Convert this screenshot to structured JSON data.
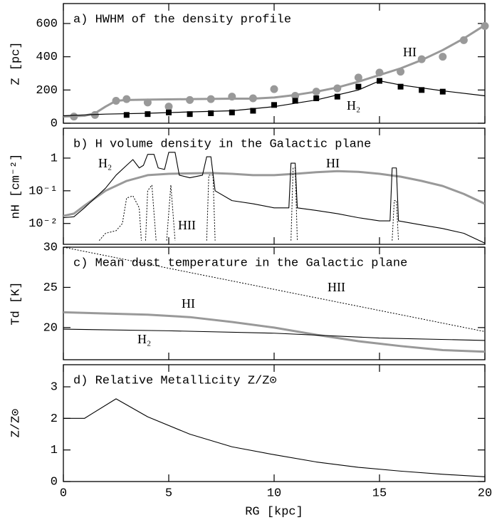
{
  "chart_data": [
    {
      "type": "line",
      "title": "a) HWHM of the density profile",
      "ylabel": "Z [pc]",
      "xlim": [
        0,
        20
      ],
      "xticks": [
        0,
        5,
        10,
        15,
        20
      ],
      "ylim": [
        0,
        720
      ],
      "yticks": [
        0,
        200,
        400,
        600
      ],
      "series": [
        {
          "color": "#999999",
          "marker": "circle",
          "x": [
            0.5,
            1.5,
            2.5,
            3,
            4,
            5,
            6,
            7,
            8,
            9,
            10,
            11,
            12,
            13,
            14,
            15,
            16,
            17,
            18,
            19,
            20
          ],
          "values": [
            40,
            50,
            135,
            145,
            125,
            100,
            140,
            145,
            160,
            150,
            205,
            165,
            190,
            210,
            275,
            305,
            310,
            385,
            400,
            500,
            585
          ]
        },
        {
          "color": "#000000",
          "marker": "square",
          "x": [
            3,
            4,
            5,
            6,
            7,
            8,
            9,
            10,
            11,
            12,
            13,
            14,
            15,
            16,
            17,
            18
          ],
          "values": [
            50,
            55,
            65,
            55,
            60,
            65,
            75,
            110,
            135,
            150,
            160,
            220,
            255,
            220,
            200,
            190
          ]
        },
        {
          "color": "#999999",
          "width": 3,
          "x": [
            0,
            1,
            1.5,
            2,
            2.5,
            3,
            4,
            6,
            8,
            9,
            10,
            11,
            12,
            13,
            14,
            15,
            16,
            17,
            18,
            19,
            20
          ],
          "values": [
            40,
            45,
            60,
            100,
            135,
            140,
            142,
            145,
            148,
            148,
            155,
            170,
            190,
            215,
            250,
            290,
            330,
            380,
            440,
            510,
            590
          ]
        },
        {
          "color": "#000000",
          "width": 1.2,
          "x": [
            0,
            1,
            2,
            4,
            6,
            8,
            10,
            12,
            14,
            15,
            16,
            18,
            20
          ],
          "values": [
            45,
            50,
            55,
            60,
            68,
            75,
            100,
            140,
            200,
            255,
            230,
            195,
            165
          ]
        }
      ],
      "annotations": [
        {
          "text": "HI",
          "color": "#999999"
        },
        {
          "text": "H₂",
          "color": "#000000"
        }
      ]
    },
    {
      "type": "line",
      "title": "b) H volume density in the Galactic plane",
      "ylabel": "nH [cm⁻²]",
      "yscale": "log",
      "xlim": [
        0,
        20
      ],
      "xticks": [
        0,
        5,
        10,
        15,
        20
      ],
      "ylim": [
        0.0023,
        8.2
      ],
      "yticks": [
        {
          "value": 0.01,
          "label": "10⁻²"
        },
        {
          "value": 0.1,
          "label": "10⁻¹"
        },
        1
      ],
      "series": [
        {
          "color": "#999999",
          "width": 3,
          "x": [
            0,
            0.5,
            1,
            2,
            3,
            4,
            5,
            6,
            7,
            8,
            9,
            10,
            11,
            12,
            13,
            14,
            15,
            16,
            17,
            18,
            19,
            20
          ],
          "values": [
            0.017,
            0.02,
            0.035,
            0.1,
            0.2,
            0.3,
            0.33,
            0.34,
            0.35,
            0.33,
            0.3,
            0.3,
            0.33,
            0.37,
            0.4,
            0.38,
            0.33,
            0.27,
            0.2,
            0.14,
            0.08,
            0.04
          ]
        },
        {
          "color": "#000000",
          "width": 1.1,
          "x": [
            0,
            0.5,
            1,
            1.5,
            2,
            2.5,
            3,
            3.3,
            3.6,
            3.8,
            4,
            4.3,
            4.5,
            4.8,
            5,
            5.3,
            5.5,
            6,
            6.6,
            6.8,
            7,
            7.2,
            8,
            9,
            10,
            10.7,
            10.8,
            11,
            11.1,
            12,
            13,
            14,
            15,
            15.5,
            15.6,
            15.8,
            15.9,
            17,
            18,
            19,
            20
          ],
          "values": [
            0.015,
            0.016,
            0.03,
            0.06,
            0.12,
            0.3,
            0.6,
            0.9,
            0.5,
            0.6,
            1.3,
            1.3,
            0.5,
            0.45,
            1.5,
            1.5,
            0.3,
            0.25,
            0.3,
            1.1,
            1.1,
            0.1,
            0.05,
            0.04,
            0.03,
            0.03,
            0.7,
            0.7,
            0.03,
            0.025,
            0.02,
            0.015,
            0.012,
            0.012,
            0.5,
            0.5,
            0.012,
            0.009,
            0.007,
            0.005,
            0.0025
          ]
        },
        {
          "color": "#000000",
          "width": 1,
          "dash": true,
          "x": [
            1.7,
            2,
            2.5,
            2.8,
            3,
            3.3,
            3.6,
            3.7,
            3.8,
            3.9,
            4,
            4.2,
            4.4,
            4.6,
            4.9,
            5.1,
            5.3,
            6,
            6.8,
            6.9,
            7.1,
            7.2,
            9,
            10.8,
            10.9,
            11,
            11.1,
            13,
            15.6,
            15.7,
            15.8,
            15.9
          ],
          "values": [
            0.003,
            0.005,
            0.006,
            0.01,
            0.06,
            0.07,
            0.03,
            0.003,
            null,
            0.003,
            0.1,
            0.15,
            0.003,
            null,
            0.003,
            0.15,
            0.003,
            null,
            0.003,
            0.3,
            0.3,
            0.003,
            null,
            0.003,
            0.5,
            0.5,
            0.003,
            null,
            0.003,
            0.05,
            0.05,
            0.003
          ]
        }
      ],
      "annotations": [
        {
          "text": "H₂",
          "color": "#000000"
        },
        {
          "text": "HI",
          "color": "#999999"
        },
        {
          "text": "HII",
          "color": "#000000"
        }
      ]
    },
    {
      "type": "line",
      "title": "c) Mean dust temperature in the Galactic plane",
      "ylabel": "Td [K]",
      "xlim": [
        0,
        20
      ],
      "xticks": [
        0,
        5,
        10,
        15,
        20
      ],
      "ylim": [
        16,
        30
      ],
      "yticks": [
        20,
        25,
        30
      ],
      "series": [
        {
          "color": "#000000",
          "width": 1,
          "dash": true,
          "x": [
            0,
            20
          ],
          "values": [
            30,
            19.5
          ]
        },
        {
          "color": "#999999",
          "width": 3,
          "x": [
            0,
            4,
            6,
            8,
            10,
            12,
            14,
            16,
            18,
            20
          ],
          "values": [
            21.9,
            21.6,
            21.3,
            20.7,
            20,
            19.1,
            18.3,
            17.7,
            17.2,
            17
          ]
        },
        {
          "color": "#000000",
          "width": 1.1,
          "x": [
            0,
            5,
            10,
            15,
            20
          ],
          "values": [
            19.8,
            19.6,
            19.3,
            18.7,
            18.4
          ]
        }
      ],
      "annotations": [
        {
          "text": "HII",
          "color": "#000000"
        },
        {
          "text": "HI",
          "color": "#999999"
        },
        {
          "text": "H₂",
          "color": "#000000"
        }
      ]
    },
    {
      "type": "line",
      "title": "d) Relative Metallicity Z/Z⊙",
      "ylabel": "Z/Z⊙",
      "xlabel": "RG [kpc]",
      "xlim": [
        0,
        20
      ],
      "xticks": [
        0,
        5,
        10,
        15,
        20
      ],
      "ylim": [
        0,
        3.7
      ],
      "yticks": [
        0,
        1,
        2,
        3
      ],
      "series": [
        {
          "color": "#000000",
          "width": 1.1,
          "x": [
            0,
            1,
            2.5,
            4,
            6,
            8,
            10,
            12,
            14,
            16,
            18,
            20
          ],
          "values": [
            2,
            2,
            2.62,
            2.05,
            1.5,
            1.1,
            0.85,
            0.62,
            0.45,
            0.33,
            0.23,
            0.15
          ]
        }
      ],
      "annotations": []
    }
  ]
}
